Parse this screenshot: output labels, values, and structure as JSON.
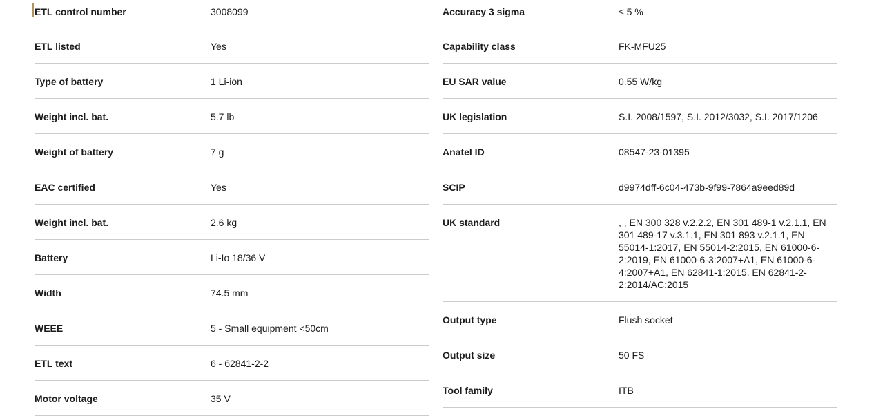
{
  "page": {
    "background_color": "#ffffff",
    "divider_color": "#cbcbcb",
    "text_color": "#1c1c1c",
    "caret_color": "#b3925f"
  },
  "spec_table": {
    "left_column": [
      {
        "label": "ETL control number",
        "value": "3008099"
      },
      {
        "label": "ETL listed",
        "value": "Yes"
      },
      {
        "label": "Type of battery",
        "value": "1 Li-ion"
      },
      {
        "label": "Weight incl. bat.",
        "value": "5.7 lb"
      },
      {
        "label": "Weight of battery",
        "value": "7 g"
      },
      {
        "label": "EAC certified",
        "value": "Yes"
      },
      {
        "label": "Weight incl. bat.",
        "value": "2.6 kg"
      },
      {
        "label": "Battery",
        "value": "Li-Io 18/36 V"
      },
      {
        "label": "Width",
        "value": "74.5 mm"
      },
      {
        "label": "WEEE",
        "value": "5 - Small equipment <50cm"
      },
      {
        "label": "ETL text",
        "value": "6 - 62841-2-2"
      },
      {
        "label": "Motor voltage",
        "value": "35 V"
      }
    ],
    "right_column": [
      {
        "label": "Accuracy 3 sigma",
        "value": "≤ 5 %"
      },
      {
        "label": "Capability class",
        "value": "FK-MFU25"
      },
      {
        "label": "EU SAR value",
        "value": "0.55 W/kg"
      },
      {
        "label": "UK legislation",
        "value": "S.I. 2008/1597, S.I. 2012/3032, S.I. 2017/1206"
      },
      {
        "label": "Anatel ID",
        "value": "08547-23-01395"
      },
      {
        "label": "SCIP",
        "value": "d9974dff-6c04-473b-9f99-7864a9eed89d"
      },
      {
        "label": "UK standard",
        "value": ", , EN 300 328 v.2.2.2, EN 301 489-1 v.2.1.1, EN 301 489-17 v.3.1.1, EN 301 893 v.2.1.1, EN 55014-1:2017, EN 55014-2:2015, EN 61000-6-2:2019, EN 61000-6-3:2007+A1, EN 61000-6-4:2007+A1, EN 62841-1:2015, EN 62841-2-2:2014/AC:2015"
      },
      {
        "label": "Output type",
        "value": "Flush socket"
      },
      {
        "label": "Output size",
        "value": "50 FS"
      },
      {
        "label": "Tool family",
        "value": "ITB"
      }
    ]
  }
}
